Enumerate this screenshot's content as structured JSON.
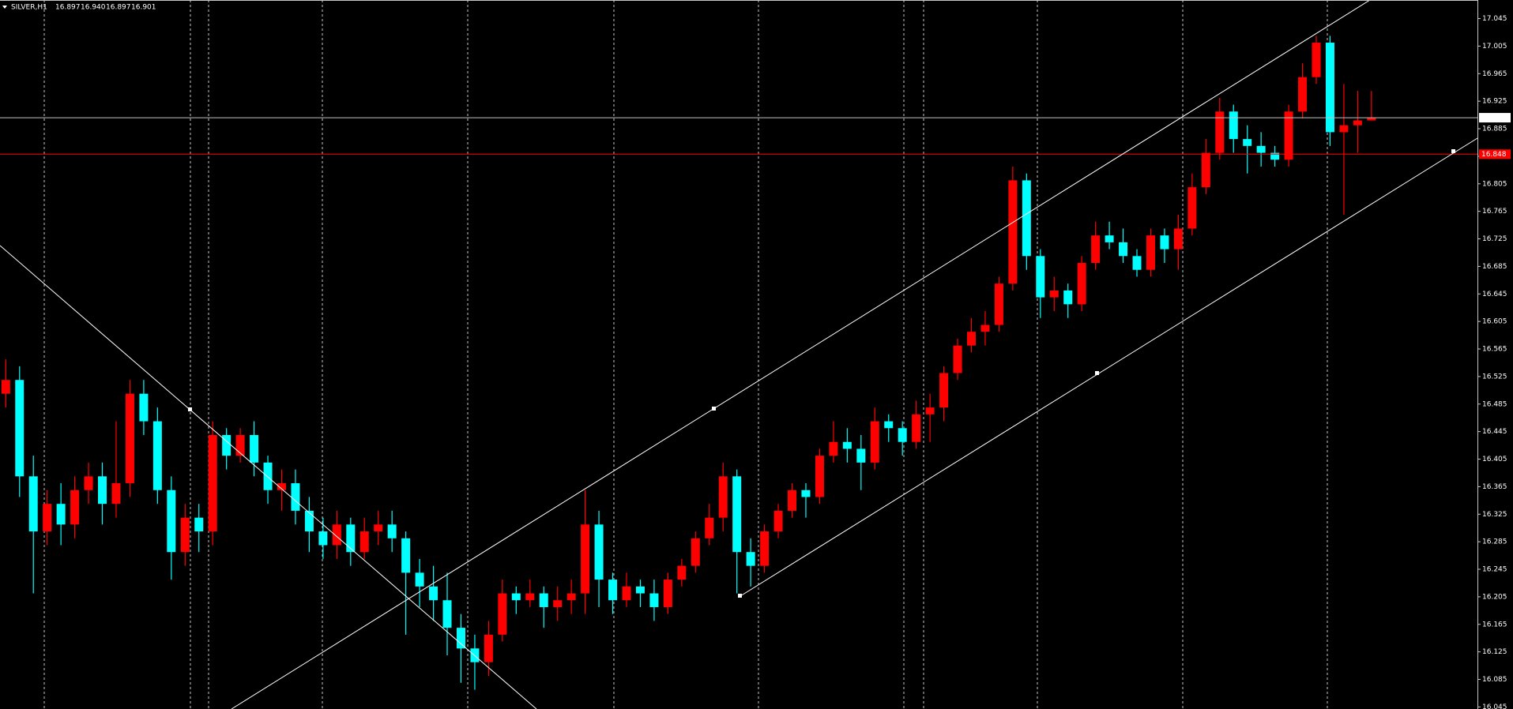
{
  "chart_data": {
    "type": "candlestick",
    "symbol": "SILVER,H1",
    "header_values": [
      "16.897",
      "16.940",
      "16.897",
      "16.901"
    ],
    "up_color": "#ff0000",
    "down_color": "#00ffff",
    "ylim": [
      16.042,
      17.072
    ],
    "yticks": [
      17.045,
      17.005,
      16.965,
      16.925,
      16.885,
      16.845,
      16.805,
      16.765,
      16.725,
      16.685,
      16.645,
      16.605,
      16.565,
      16.525,
      16.485,
      16.445,
      16.405,
      16.365,
      16.325,
      16.285,
      16.245,
      16.205,
      16.165,
      16.125,
      16.085,
      16.045
    ],
    "grid": false,
    "bid_price": 16.901,
    "bid_color": "#c0c0c0",
    "level_price": 16.848,
    "level_color": "#ff0000",
    "open": [
      16.5,
      16.52,
      16.38,
      16.3,
      16.34,
      16.31,
      16.36,
      16.38,
      16.34,
      16.37,
      16.5,
      16.46,
      16.36,
      16.27,
      16.32,
      16.3,
      16.44,
      16.41,
      16.44,
      16.4,
      16.36,
      16.37,
      16.33,
      16.3,
      16.28,
      16.31,
      16.27,
      16.3,
      16.31,
      16.29,
      16.24,
      16.22,
      16.2,
      16.16,
      16.13,
      16.11,
      16.15,
      16.21,
      16.2,
      16.21,
      16.19,
      16.2,
      16.21,
      16.31,
      16.23,
      16.2,
      16.22,
      16.21,
      16.19,
      16.23,
      16.25,
      16.29,
      16.32,
      16.38,
      16.27,
      16.25,
      16.3,
      16.33,
      16.36,
      16.35,
      16.41,
      16.43,
      16.42,
      16.4,
      16.46,
      16.45,
      16.43,
      16.47,
      16.48,
      16.53,
      16.57,
      16.59,
      16.6,
      16.66,
      16.81,
      16.7,
      16.64,
      16.65,
      16.63,
      16.69,
      16.73,
      16.72,
      16.7,
      16.68,
      16.73,
      16.71,
      16.74,
      16.8,
      16.85,
      16.91,
      16.87,
      16.86,
      16.85,
      16.84,
      16.91,
      16.96,
      17.01,
      16.88,
      16.89,
      16.897
    ],
    "high": [
      16.55,
      16.54,
      16.41,
      16.36,
      16.37,
      16.38,
      16.4,
      16.4,
      16.46,
      16.52,
      16.52,
      16.48,
      16.38,
      16.34,
      16.34,
      16.46,
      16.45,
      16.45,
      16.46,
      16.41,
      16.39,
      16.39,
      16.35,
      16.32,
      16.33,
      16.32,
      16.32,
      16.33,
      16.33,
      16.3,
      16.26,
      16.25,
      16.24,
      16.18,
      16.15,
      16.17,
      16.23,
      16.22,
      16.23,
      16.22,
      16.22,
      16.23,
      16.36,
      16.33,
      16.24,
      16.24,
      16.23,
      16.23,
      16.24,
      16.26,
      16.3,
      16.34,
      16.4,
      16.39,
      16.29,
      16.31,
      16.34,
      16.37,
      16.37,
      16.42,
      16.46,
      16.45,
      16.44,
      16.48,
      16.47,
      16.46,
      16.49,
      16.5,
      16.54,
      16.58,
      16.61,
      16.62,
      16.67,
      16.83,
      16.82,
      16.71,
      16.67,
      16.66,
      16.7,
      16.75,
      16.75,
      16.74,
      16.71,
      16.74,
      16.74,
      16.76,
      16.82,
      16.87,
      16.93,
      16.92,
      16.89,
      16.88,
      16.86,
      16.92,
      16.98,
      17.02,
      17.02,
      16.95,
      16.94,
      16.94
    ],
    "low": [
      16.48,
      16.35,
      16.21,
      16.28,
      16.28,
      16.29,
      16.34,
      16.31,
      16.32,
      16.35,
      16.44,
      16.34,
      16.23,
      16.25,
      16.27,
      16.28,
      16.39,
      16.4,
      16.38,
      16.34,
      16.33,
      16.31,
      16.27,
      16.26,
      16.26,
      16.25,
      16.26,
      16.28,
      16.27,
      16.15,
      16.19,
      16.17,
      16.12,
      16.08,
      16.07,
      16.09,
      16.14,
      16.18,
      16.19,
      16.16,
      16.17,
      16.18,
      16.18,
      16.19,
      16.18,
      16.19,
      16.19,
      16.17,
      16.18,
      16.22,
      16.24,
      16.28,
      16.3,
      16.21,
      16.22,
      16.24,
      16.29,
      16.32,
      16.32,
      16.34,
      16.4,
      16.4,
      16.36,
      16.39,
      16.43,
      16.41,
      16.42,
      16.43,
      16.46,
      16.52,
      16.56,
      16.57,
      16.59,
      16.65,
      16.68,
      16.61,
      16.62,
      16.61,
      16.62,
      16.68,
      16.71,
      16.69,
      16.67,
      16.67,
      16.69,
      16.68,
      16.73,
      16.79,
      16.84,
      16.85,
      16.82,
      16.83,
      16.83,
      16.83,
      16.9,
      16.95,
      16.86,
      16.76,
      16.85,
      16.897
    ],
    "close": [
      16.52,
      16.38,
      16.3,
      16.34,
      16.31,
      16.36,
      16.38,
      16.34,
      16.37,
      16.5,
      16.46,
      16.36,
      16.27,
      16.32,
      16.3,
      16.44,
      16.41,
      16.44,
      16.4,
      16.36,
      16.37,
      16.33,
      16.3,
      16.28,
      16.31,
      16.27,
      16.3,
      16.31,
      16.29,
      16.24,
      16.22,
      16.2,
      16.16,
      16.13,
      16.11,
      16.15,
      16.21,
      16.2,
      16.21,
      16.19,
      16.2,
      16.21,
      16.31,
      16.23,
      16.2,
      16.22,
      16.21,
      16.19,
      16.23,
      16.25,
      16.29,
      16.32,
      16.38,
      16.27,
      16.25,
      16.3,
      16.33,
      16.36,
      16.35,
      16.41,
      16.43,
      16.42,
      16.4,
      16.46,
      16.45,
      16.43,
      16.47,
      16.48,
      16.53,
      16.57,
      16.59,
      16.6,
      16.66,
      16.81,
      16.7,
      16.64,
      16.65,
      16.63,
      16.69,
      16.73,
      16.72,
      16.7,
      16.68,
      16.73,
      16.71,
      16.74,
      16.8,
      16.85,
      16.91,
      16.87,
      16.86,
      16.85,
      16.84,
      16.91,
      16.96,
      17.01,
      16.88,
      16.89,
      16.897,
      16.901
    ]
  }
}
